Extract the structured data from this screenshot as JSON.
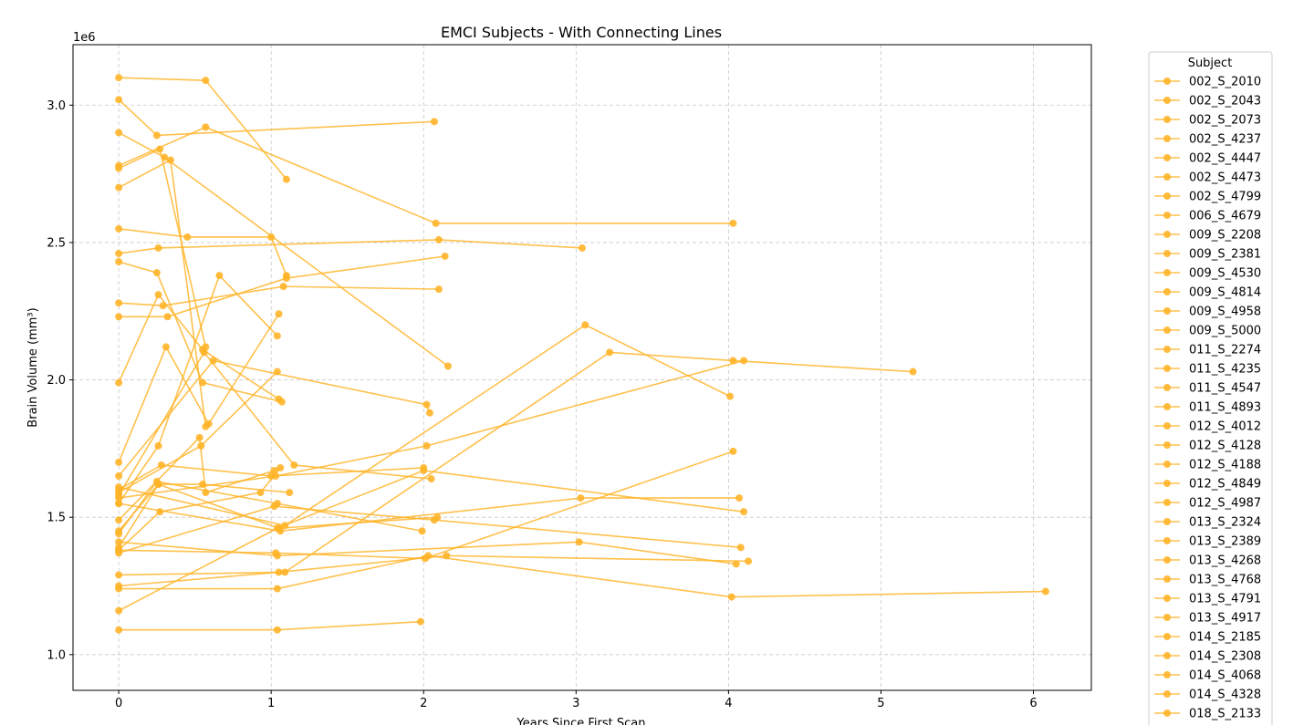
{
  "chart_data": {
    "type": "line",
    "title": "EMCI Subjects - With Connecting Lines",
    "xlabel": "Years Since First Scan",
    "ylabel": "Brain Volume (mm³)",
    "y_offset_label": "1e6",
    "y_scale": 1000000,
    "xlim": [
      -0.3,
      6.38
    ],
    "ylim": [
      870000,
      3220000
    ],
    "x_ticks": [
      0,
      1,
      2,
      3,
      4,
      5,
      6
    ],
    "y_ticks": [
      1000000,
      1500000,
      2000000,
      2500000,
      3000000
    ],
    "x_tick_labels": [
      "0",
      "1",
      "2",
      "3",
      "4",
      "5",
      "6"
    ],
    "y_tick_labels": [
      "1.0",
      "1.5",
      "2.0",
      "2.5",
      "3.0"
    ],
    "grid": true,
    "color": "#FFB326",
    "legend_title": "Subject",
    "legend_position": "outside-right",
    "series": [
      {
        "name": "002_S_2010",
        "x": [
          0,
          0.57,
          1.1
        ],
        "y": [
          3100000,
          3090000,
          2730000
        ]
      },
      {
        "name": "002_S_2043",
        "x": [
          0,
          0.57,
          2.08,
          4.03
        ],
        "y": [
          2780000,
          2920000,
          2570000,
          2570000
        ]
      },
      {
        "name": "002_S_2073",
        "x": [
          0,
          0.25,
          2.07
        ],
        "y": [
          3020000,
          2890000,
          2940000
        ]
      },
      {
        "name": "002_S_4237",
        "x": [
          0,
          0.3,
          2.16
        ],
        "y": [
          2900000,
          2810000,
          2050000
        ]
      },
      {
        "name": "002_S_4447",
        "x": [
          0,
          0.27,
          0.57
        ],
        "y": [
          2770000,
          2840000,
          2120000
        ]
      },
      {
        "name": "002_S_4473",
        "x": [
          0,
          0.34,
          0.57
        ],
        "y": [
          2700000,
          2800000,
          1830000
        ]
      },
      {
        "name": "002_S_4799",
        "x": [
          0,
          0.45,
          1.0,
          1.1
        ],
        "y": [
          2550000,
          2520000,
          2520000,
          2380000
        ]
      },
      {
        "name": "006_S_4679",
        "x": [
          0,
          0.26,
          2.1,
          3.04
        ],
        "y": [
          2460000,
          2480000,
          2510000,
          2480000
        ]
      },
      {
        "name": "009_S_2208",
        "x": [
          0,
          0.25,
          0.55,
          1.07
        ],
        "y": [
          2430000,
          2390000,
          1990000,
          1920000
        ]
      },
      {
        "name": "009_S_2381",
        "x": [
          0,
          0.29,
          1.08,
          2.1
        ],
        "y": [
          2280000,
          2270000,
          2340000,
          2330000
        ]
      },
      {
        "name": "009_S_4530",
        "x": [
          0,
          0.32,
          1.1,
          2.14
        ],
        "y": [
          2230000,
          2230000,
          2370000,
          2450000
        ]
      },
      {
        "name": "009_S_4814",
        "x": [
          0,
          0.26,
          0.55,
          1.05
        ],
        "y": [
          1990000,
          2310000,
          2110000,
          1930000
        ]
      },
      {
        "name": "009_S_4958",
        "x": [
          0,
          0.31,
          0.59,
          1.05
        ],
        "y": [
          1700000,
          2120000,
          1840000,
          2240000
        ]
      },
      {
        "name": "009_S_5000",
        "x": [
          0,
          0.62,
          2.02,
          2.04
        ],
        "y": [
          1650000,
          2070000,
          1910000,
          1880000
        ]
      },
      {
        "name": "011_S_2274",
        "x": [
          0,
          0.54,
          1.04
        ],
        "y": [
          1590000,
          1760000,
          2030000
        ]
      },
      {
        "name": "011_S_4235",
        "x": [
          0,
          0.26,
          0.66,
          1.04
        ],
        "y": [
          1550000,
          1760000,
          2380000,
          2160000
        ]
      },
      {
        "name": "011_S_4547",
        "x": [
          0,
          0.56,
          1.15,
          2.05
        ],
        "y": [
          1580000,
          2100000,
          1690000,
          1640000
        ]
      },
      {
        "name": "011_S_4893",
        "x": [
          0,
          0.53,
          0.57,
          1.02
        ],
        "y": [
          1490000,
          1790000,
          1590000,
          1670000
        ]
      },
      {
        "name": "012_S_4012",
        "x": [
          0,
          0.28,
          1.0,
          2.0
        ],
        "y": [
          1600000,
          1690000,
          1650000,
          1680000
        ]
      },
      {
        "name": "012_S_4128",
        "x": [
          0,
          0.25,
          1.04,
          1.99
        ],
        "y": [
          1440000,
          1630000,
          1550000,
          1450000
        ]
      },
      {
        "name": "012_S_4188",
        "x": [
          0,
          0.26,
          1.05,
          2.09
        ],
        "y": [
          1450000,
          1620000,
          1460000,
          1500000
        ]
      },
      {
        "name": "012_S_4849",
        "x": [
          0,
          0.26,
          0.55,
          1.12
        ],
        "y": [
          1390000,
          1620000,
          1620000,
          1590000
        ]
      },
      {
        "name": "012_S_4987",
        "x": [
          0,
          0.27,
          0.93,
          1.06
        ],
        "y": [
          1380000,
          1520000,
          1590000,
          1680000
        ]
      },
      {
        "name": "013_S_2324",
        "x": [
          0,
          1.03,
          2.02,
          4.1
        ],
        "y": [
          1570000,
          1650000,
          1760000,
          2070000
        ]
      },
      {
        "name": "013_S_2389",
        "x": [
          0,
          1.09,
          3.06,
          4.01
        ],
        "y": [
          1610000,
          1470000,
          2200000,
          1940000
        ]
      },
      {
        "name": "013_S_4268",
        "x": [
          0,
          1.06,
          3.03,
          4.07
        ],
        "y": [
          1550000,
          1450000,
          1570000,
          1570000
        ]
      },
      {
        "name": "013_S_4768",
        "x": [
          0,
          1.04,
          3.02,
          4.05
        ],
        "y": [
          1410000,
          1360000,
          1410000,
          1330000
        ]
      },
      {
        "name": "013_S_4791",
        "x": [
          0,
          1.03,
          2.01,
          4.03
        ],
        "y": [
          1380000,
          1370000,
          1350000,
          1740000
        ]
      },
      {
        "name": "013_S_4917",
        "x": [
          0,
          1.09,
          3.22,
          4.03,
          5.21
        ],
        "y": [
          1290000,
          1300000,
          2100000,
          2070000,
          2030000
        ]
      },
      {
        "name": "014_S_2185",
        "x": [
          0,
          1.04,
          2.0,
          4.1
        ],
        "y": [
          1160000,
          1460000,
          1670000,
          1520000
        ]
      },
      {
        "name": "014_S_2308",
        "x": [
          0,
          1.02,
          2.07,
          4.08
        ],
        "y": [
          1370000,
          1540000,
          1490000,
          1390000
        ]
      },
      {
        "name": "014_S_4068",
        "x": [
          0,
          1.05,
          2.15,
          4.13
        ],
        "y": [
          1250000,
          1300000,
          1360000,
          1340000
        ]
      },
      {
        "name": "014_S_4328",
        "x": [
          0,
          1.04,
          2.03,
          4.02,
          6.08
        ],
        "y": [
          1240000,
          1240000,
          1360000,
          1210000,
          1230000
        ]
      },
      {
        "name": "018_S_2133",
        "x": [
          0,
          1.04,
          1.98
        ],
        "y": [
          1090000,
          1090000,
          1120000
        ]
      }
    ]
  }
}
